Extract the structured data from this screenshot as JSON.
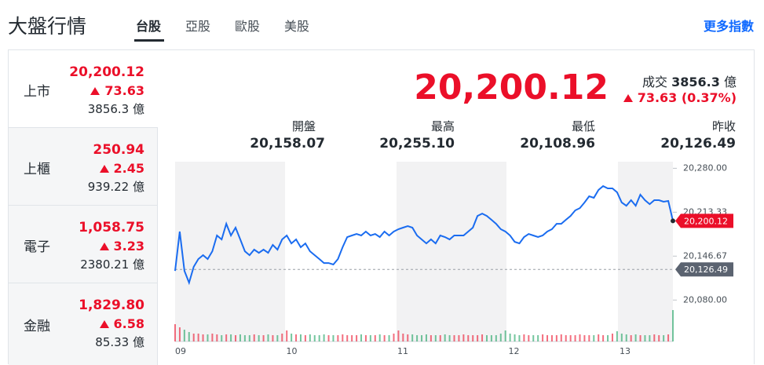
{
  "header": {
    "title": "大盤行情",
    "tabs": [
      "台股",
      "亞股",
      "歐股",
      "美股"
    ],
    "more": "更多指數"
  },
  "markets": [
    {
      "name": "上市",
      "price": "20,200.12",
      "change": "73.63",
      "volume": "3856.3 億"
    },
    {
      "name": "上櫃",
      "price": "250.94",
      "change": "2.45",
      "volume": "939.22 億"
    },
    {
      "name": "電子",
      "price": "1,058.75",
      "change": "3.23",
      "volume": "2380.21 億"
    },
    {
      "name": "金融",
      "price": "1,829.80",
      "change": "6.58",
      "volume": "85.33 億"
    }
  ],
  "quote": {
    "price": "20,200.12",
    "volume_label": "成交",
    "volume": "3856.3",
    "volume_unit": "億",
    "change": "73.63 (0.37%)",
    "stats": [
      {
        "label": "開盤",
        "value": "20,158.07"
      },
      {
        "label": "最高",
        "value": "20,255.10"
      },
      {
        "label": "最低",
        "value": "20,108.96"
      },
      {
        "label": "昨收",
        "value": "20,126.49"
      }
    ]
  },
  "chart_data": {
    "type": "line",
    "color": "#1a6cf0",
    "x_labels": [
      "09",
      "10",
      "11",
      "12",
      "13"
    ],
    "values": [
      20124.3,
      20183.9,
      20124.3,
      20106.4,
      20130.4,
      20142.2,
      20148.1,
      20142.2,
      20154.1,
      20178.0,
      20172.0,
      20195.8,
      20178.0,
      20189.9,
      20172.0,
      20154.1,
      20148.1,
      20156.5,
      20151.7,
      20156.5,
      20151.7,
      20163.7,
      20156.5,
      20172.0,
      20178.0,
      20166.0,
      20172.0,
      20160.1,
      20166.0,
      20154.1,
      20148.1,
      20142.2,
      20136.2,
      20136.2,
      20133.9,
      20142.2,
      20160.1,
      20175.6,
      20178.0,
      20180.3,
      20178.0,
      20183.9,
      20178.0,
      20180.3,
      20175.6,
      20183.9,
      20178.0,
      20183.9,
      20187.5,
      20189.9,
      20192.3,
      20189.9,
      20178.0,
      20172.0,
      20166.0,
      20172.0,
      20166.0,
      20178.0,
      20175.6,
      20172.0,
      20178.0,
      20178.0,
      20178.0,
      20183.9,
      20189.9,
      20207.7,
      20211.3,
      20207.7,
      20201.8,
      20195.8,
      20187.5,
      20183.9,
      20178.0,
      20168.4,
      20166.0,
      20175.6,
      20180.3,
      20178.0,
      20175.6,
      20178.0,
      20183.9,
      20187.5,
      20195.8,
      20195.8,
      20201.8,
      20207.7,
      20216.1,
      20219.6,
      20228.0,
      20237.5,
      20235.2,
      20247.1,
      20253.0,
      20249.5,
      20249.5,
      20243.5,
      20228.0,
      20223.2,
      20231.6,
      20223.2,
      20239.9,
      20231.6,
      20225.6,
      20231.6,
      20231.6,
      20229.2,
      20230.4,
      20200.12
    ],
    "volumes": [
      22,
      18,
      15,
      12,
      10,
      10,
      9,
      9,
      10,
      9,
      8,
      9,
      9,
      8,
      9,
      8,
      8,
      9,
      8,
      8,
      9,
      8,
      8,
      10,
      14,
      10,
      9,
      9,
      8,
      9,
      8,
      8,
      9,
      8,
      8,
      8,
      9,
      8,
      8,
      8,
      9,
      8,
      8,
      8,
      9,
      8,
      8,
      10,
      14,
      10,
      9,
      9,
      8,
      8,
      9,
      8,
      8,
      8,
      9,
      8,
      8,
      8,
      9,
      8,
      8,
      8,
      9,
      8,
      8,
      8,
      10,
      14,
      10,
      9,
      8,
      9,
      8,
      8,
      8,
      9,
      8,
      8,
      8,
      9,
      8,
      8,
      8,
      9,
      8,
      8,
      8,
      9,
      8,
      8,
      10,
      13,
      10,
      9,
      8,
      9,
      8,
      8,
      8,
      9,
      8,
      8,
      9,
      40
    ],
    "ylim": [
      20010,
      20290
    ],
    "yticks": [
      {
        "value": 20080,
        "label": "20,080.00"
      },
      {
        "value": 20146.67,
        "label": "20,146.67"
      },
      {
        "value": 20213.33,
        "label": "20,213.33"
      },
      {
        "value": 20280,
        "label": "20,280.00"
      }
    ],
    "close": {
      "value": 20200.12,
      "label": "20,200.12"
    },
    "prev_close": {
      "value": 20126.49,
      "label": "20,126.49"
    }
  }
}
